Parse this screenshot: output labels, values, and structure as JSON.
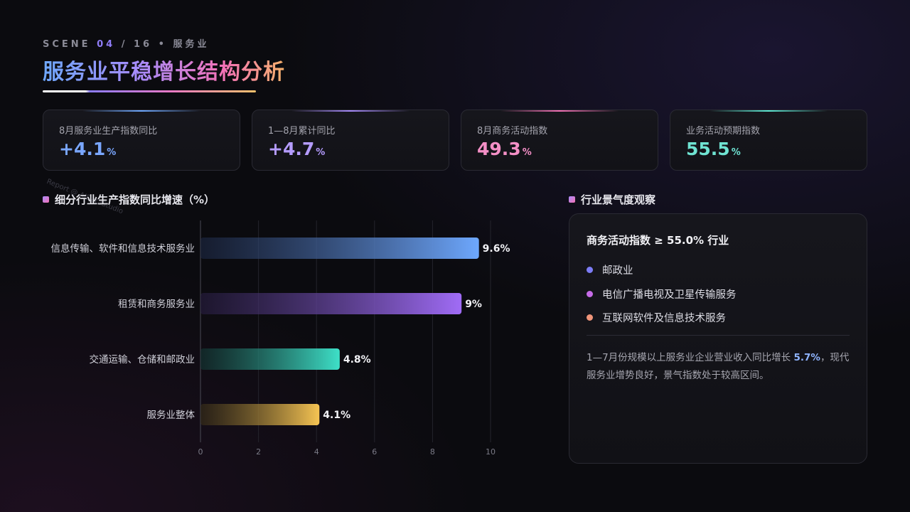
{
  "header": {
    "scene_prefix": "SCENE",
    "scene_num": "04",
    "scene_total": "/ 16",
    "scene_sep": "•",
    "scene_tag": "服务业",
    "title": "服务业平稳增长结构分析"
  },
  "kpis": [
    {
      "label": "8月服务业生产指数同比",
      "value": "+4.1",
      "unit": "%",
      "color": "#7aa7ff",
      "glow": "#6ea8fe"
    },
    {
      "label": "1—8月累计同比",
      "value": "+4.7",
      "unit": "%",
      "color": "#b59cff",
      "glow": "#a78bfa"
    },
    {
      "label": "8月商务活动指数",
      "value": "49.3",
      "unit": "%",
      "color": "#f48fc6",
      "glow": "#f472b6"
    },
    {
      "label": "业务活动预期指数",
      "value": "55.5",
      "unit": "%",
      "color": "#6fe3d2",
      "glow": "#5eead4"
    }
  ],
  "watermark": "Report @ AIDataStudio",
  "chart_section": {
    "title": "细分行业生产指数同比增速（%）"
  },
  "chart_data": {
    "type": "bar",
    "orientation": "horizontal",
    "categories": [
      "信息传输、软件和信息技术服务业",
      "租赁和商务服务业",
      "交通运输、仓储和邮政业",
      "服务业整体"
    ],
    "values": [
      9.6,
      9,
      4.8,
      4.1
    ],
    "data_labels": [
      "9.6%",
      "9%",
      "4.8%",
      "4.1%"
    ],
    "xlim": [
      0,
      10
    ],
    "xticks": [
      0,
      2,
      4,
      6,
      8,
      10
    ],
    "grid": true,
    "colors": [
      [
        "#1e2a48",
        "#6ea8fe"
      ],
      [
        "#2a1f45",
        "#a06cf6"
      ],
      [
        "#133a36",
        "#3ee0c8"
      ],
      [
        "#3a3018",
        "#f6c453"
      ]
    ]
  },
  "panel": {
    "section_title": "行业景气度观察",
    "heading": "商务活动指数 ≥ 55.0% 行业",
    "items": [
      {
        "label": "邮政业",
        "color": "#7c7cf6"
      },
      {
        "label": "电信广播电视及卫星传输服务",
        "color": "#c66be8"
      },
      {
        "label": "互联网软件及信息技术服务",
        "color": "#f0957a"
      }
    ],
    "note_pre": "1—7月份规模以上服务业企业营业收入同比增长 ",
    "note_highlight": "5.7%",
    "note_post": "，现代服务业增势良好，景气指数处于较高区间。"
  }
}
